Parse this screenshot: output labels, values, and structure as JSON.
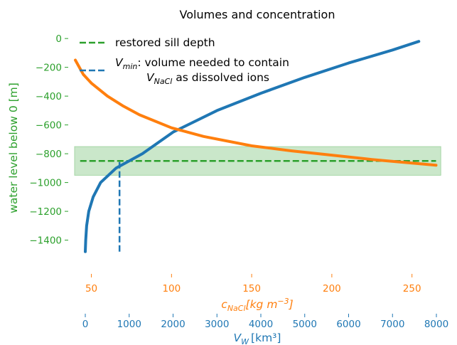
{
  "chart_data": {
    "type": "line",
    "title": "Volumes and concentration",
    "ylabel": "water level below 0 [m]",
    "ylim": [
      -1570,
      60
    ],
    "yticks": [
      0,
      -200,
      -400,
      -600,
      -800,
      -1000,
      -1200,
      -1400
    ],
    "x_conc_axis": {
      "label_base": "c",
      "label_sub": "NaCl",
      "label_units": "[kg m",
      "label_exp": "−3",
      "label_close": "]",
      "range": [
        40,
        267
      ],
      "ticks": [
        50,
        100,
        150,
        200,
        250
      ],
      "color": "#ff7f0e"
    },
    "x_vol_axis": {
      "label_base": "V",
      "label_sub": "W",
      "label_units": "[km³]",
      "range": [
        0,
        8000
      ],
      "ticks": [
        0,
        1000,
        2000,
        3000,
        4000,
        5000,
        6000,
        7000,
        8000
      ],
      "color": "#1f77b4"
    },
    "legend_placement": "upper-left",
    "sill_band": {
      "y_top": -750,
      "y_bottom": -950,
      "color": "#2ca02c"
    },
    "series": [
      {
        "name": "restored sill depth",
        "style": "dashed-horizontal",
        "color": "#2ca02c",
        "y": -850,
        "x_conc_range": [
          43,
          265
        ]
      },
      {
        "name": "V_min: volume needed to contain V_NaCl as dissolved ions",
        "style": "dashed-vertical",
        "color": "#1f77b4",
        "x_vol": 780,
        "y_range": [
          -1480,
          -850
        ]
      },
      {
        "name": "",
        "style": "solid",
        "color": "#1f77b4",
        "x_axis": "volume",
        "points": [
          [
            0,
            -1480
          ],
          [
            10,
            -1400
          ],
          [
            30,
            -1300
          ],
          [
            80,
            -1200
          ],
          [
            180,
            -1100
          ],
          [
            350,
            -1000
          ],
          [
            700,
            -900
          ],
          [
            1300,
            -800
          ],
          [
            2000,
            -650
          ],
          [
            3000,
            -500
          ],
          [
            4000,
            -380
          ],
          [
            5000,
            -270
          ],
          [
            6000,
            -170
          ],
          [
            7000,
            -80
          ],
          [
            7600,
            -20
          ]
        ]
      },
      {
        "name": "",
        "style": "solid",
        "color": "#ff7f0e",
        "x_axis": "concentration",
        "points": [
          [
            40,
            -150
          ],
          [
            45,
            -250
          ],
          [
            50,
            -310
          ],
          [
            60,
            -400
          ],
          [
            70,
            -470
          ],
          [
            80,
            -530
          ],
          [
            100,
            -620
          ],
          [
            120,
            -680
          ],
          [
            150,
            -745
          ],
          [
            175,
            -780
          ],
          [
            200,
            -810
          ],
          [
            225,
            -840
          ],
          [
            250,
            -865
          ],
          [
            265,
            -880
          ]
        ]
      }
    ],
    "legend": {
      "entry1": "restored sill depth",
      "entry2_a": "V",
      "entry2_a_sub": "min",
      "entry2_b": ": volume needed to contain",
      "entry2_c": "V",
      "entry2_c_sub": "NaCl",
      "entry2_d": " as dissolved ions"
    }
  }
}
